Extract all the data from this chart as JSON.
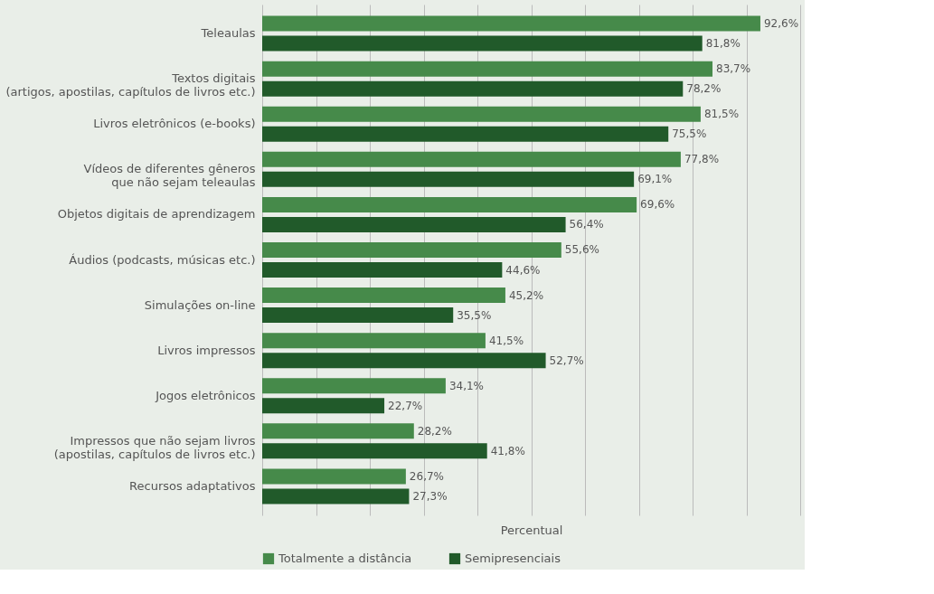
{
  "chart_data": {
    "type": "bar",
    "orientation": "horizontal",
    "xlabel": "Percentual",
    "categories": [
      "Teleaulas",
      "Textos digitais\n(artigos, apostilas, capítulos de livros etc.)",
      "Livros eletrônicos (e-books)",
      "Vídeos de diferentes gêneros\nque não sejam teleaulas",
      "Objetos digitais de aprendizagem",
      "Áudios (podcasts, músicas etc.)",
      "Simulações on-line",
      "Livros impressos",
      "Jogos eletrônicos",
      "Impressos que não sejam livros\n(apostilas, capítulos de livros etc.)",
      "Recursos adaptativos"
    ],
    "series": [
      {
        "name": "Totalmente a distância",
        "color": "#468a4a",
        "values": [
          92.6,
          83.7,
          81.5,
          77.8,
          69.6,
          55.6,
          45.2,
          41.5,
          34.1,
          28.2,
          26.7
        ],
        "value_labels": [
          "92,6%",
          "83,7%",
          "81,5%",
          "77,8%",
          "69,6%",
          "55,6%",
          "45,2%",
          "41,5%",
          "34,1%",
          "28,2%",
          "26,7%"
        ]
      },
      {
        "name": "Semipresenciais",
        "color": "#215a2a",
        "values": [
          81.8,
          78.2,
          75.5,
          69.1,
          56.4,
          44.6,
          35.5,
          52.7,
          22.7,
          41.8,
          27.3
        ],
        "value_labels": [
          "81,8%",
          "78,2%",
          "75,5%",
          "69,1%",
          "56,4%",
          "44,6%",
          "35,5%",
          "52,7%",
          "22,7%",
          "41,8%",
          "27,3%"
        ]
      }
    ],
    "xlim": [
      0,
      100
    ],
    "xticks": [
      {
        "value": 0,
        "label": null
      },
      {
        "value": 10,
        "label": null
      },
      {
        "value": 20,
        "label": null
      },
      {
        "value": 30,
        "label": null
      },
      {
        "value": 40,
        "label": null
      },
      {
        "value": 50,
        "label": null
      },
      {
        "value": 60,
        "label": null
      },
      {
        "value": 70,
        "label": null
      },
      {
        "value": 80,
        "label": null
      },
      {
        "value": 90,
        "label": null
      },
      {
        "value": 100,
        "label": null
      }
    ],
    "tick_labels": "y",
    "grid": "x",
    "legend": "bottom"
  }
}
